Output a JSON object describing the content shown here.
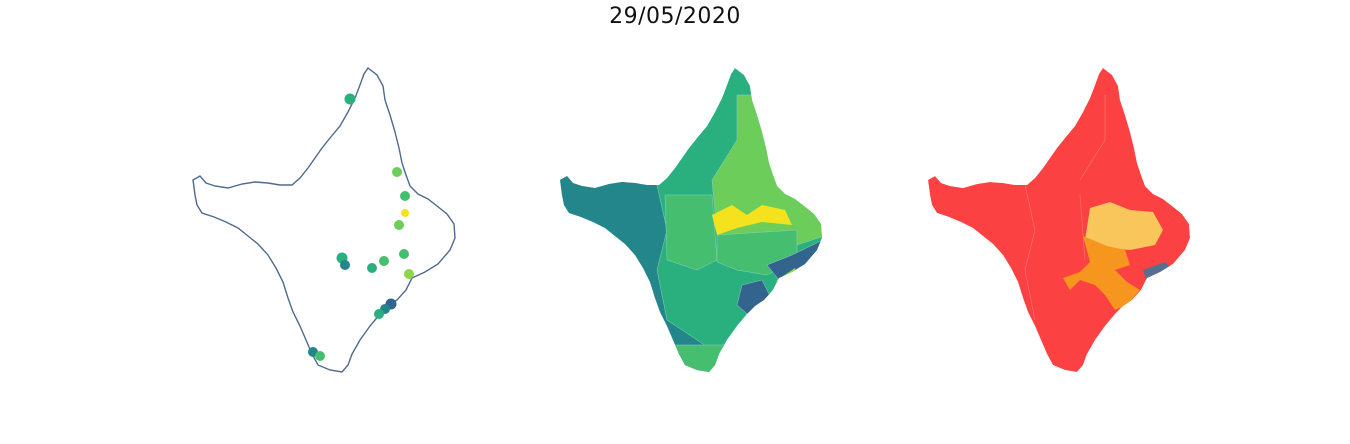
{
  "title": "29/05/2020",
  "colors": {
    "outline": "#4f6a8a",
    "viridis": {
      "dark_blue": "#32648e",
      "teal": "#23868a",
      "green_teal": "#2ab07f",
      "green": "#45bf6f",
      "light_green": "#6ccd5a",
      "yellow_green": "#8ed645",
      "yellow": "#f5e21f"
    },
    "risk": {
      "red": "#fb4142",
      "orange": "#f7961e",
      "light_orange": "#f8c65a",
      "slate": "#54708e"
    }
  },
  "panels": [
    {
      "id": "points",
      "type": "point-map"
    },
    {
      "id": "municipalities-viridis",
      "type": "choropleth"
    },
    {
      "id": "municipalities-risk",
      "type": "choropleth"
    }
  ]
}
